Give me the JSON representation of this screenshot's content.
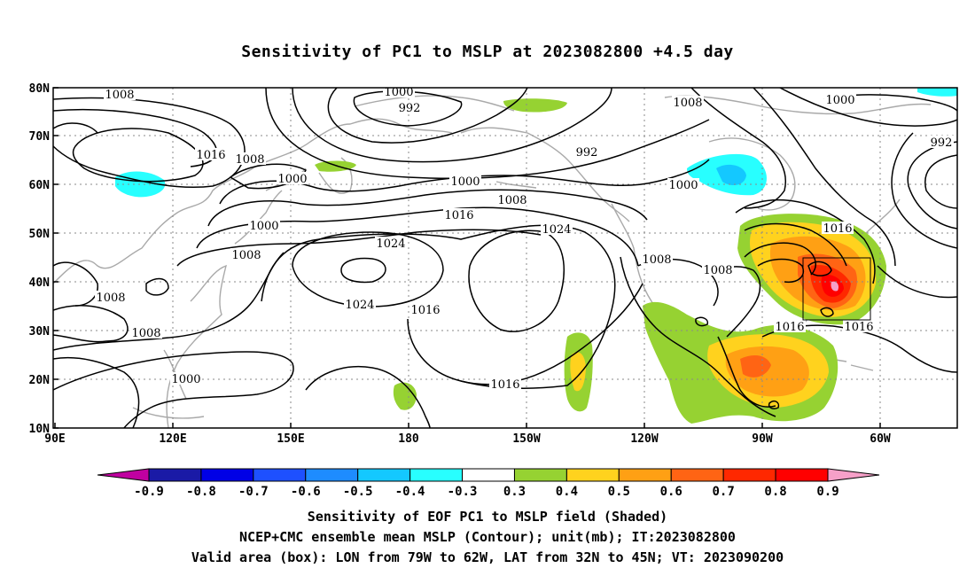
{
  "title": "Sensitivity of PC1 to MSLP at 2023082800 +4.5 day",
  "map": {
    "lon_ticks": [
      "90E",
      "120E",
      "150E",
      "180",
      "150W",
      "120W",
      "90W",
      "60W"
    ],
    "lat_ticks": [
      "10N",
      "20N",
      "30N",
      "40N",
      "50N",
      "60N",
      "70N",
      "80N"
    ],
    "contour_labels": [
      {
        "name": "1008-nw",
        "text": "1008"
      },
      {
        "name": "1000-n",
        "text": "1000"
      },
      {
        "name": "992-n",
        "text": "992"
      },
      {
        "name": "1016-w",
        "text": "1016"
      },
      {
        "name": "1008-w",
        "text": "1008"
      },
      {
        "name": "1000-w1",
        "text": "1000"
      },
      {
        "name": "992-mid",
        "text": "992"
      },
      {
        "name": "1008-ne",
        "text": "1008"
      },
      {
        "name": "1000-ne",
        "text": "1000"
      },
      {
        "name": "992-e",
        "text": "992"
      },
      {
        "name": "1000-mid",
        "text": "1000"
      },
      {
        "name": "1008-mid",
        "text": "1008"
      },
      {
        "name": "1000-alaska",
        "text": "1000"
      },
      {
        "name": "1016-mid",
        "text": "1016"
      },
      {
        "name": "1000-w2",
        "text": "1000"
      },
      {
        "name": "1024-high1",
        "text": "1024"
      },
      {
        "name": "1024-high2",
        "text": "1024"
      },
      {
        "name": "1008-w2",
        "text": "1008"
      },
      {
        "name": "1016-e",
        "text": "1016"
      },
      {
        "name": "1008-coast",
        "text": "1008"
      },
      {
        "name": "1008-na",
        "text": "1008"
      },
      {
        "name": "1008-sw",
        "text": "1008"
      },
      {
        "name": "1024-high1b",
        "text": "1024"
      },
      {
        "name": "1016-pac",
        "text": "1016"
      },
      {
        "name": "1008-sw2",
        "text": "1008"
      },
      {
        "name": "1016-gulf",
        "text": "1016"
      },
      {
        "name": "1016-atl",
        "text": "1016"
      },
      {
        "name": "1000-sw",
        "text": "1000"
      },
      {
        "name": "1016-trop",
        "text": "1016"
      }
    ],
    "valid_box": {
      "lon_west": "79W",
      "lon_east": "62W",
      "lat_south": "32N",
      "lat_north": "45N"
    }
  },
  "colorbar": {
    "labels": [
      "-0.9",
      "-0.8",
      "-0.7",
      "-0.6",
      "-0.5",
      "-0.4",
      "-0.3",
      "0.3",
      "0.4",
      "0.5",
      "0.6",
      "0.7",
      "0.8",
      "0.9"
    ],
    "colors": [
      "#c000a0",
      "#1a1aa6",
      "#0000e6",
      "#1e50ff",
      "#1e8cff",
      "#14c8ff",
      "#28ffff",
      "#ffffff",
      "#96d232",
      "#ffd21e",
      "#ffa014",
      "#ff6414",
      "#ff2800",
      "#ff0000",
      "#f6a0c8"
    ]
  },
  "captions": {
    "line1": "Sensitivity of EOF PC1 to MSLP field (Shaded)",
    "line2": "NCEP+CMC ensemble mean MSLP (Contour); unit(mb); IT:2023082800",
    "line3": "Valid area (box): LON from 79W to 62W, LAT from 32N to 45N; VT: 2023090200"
  }
}
